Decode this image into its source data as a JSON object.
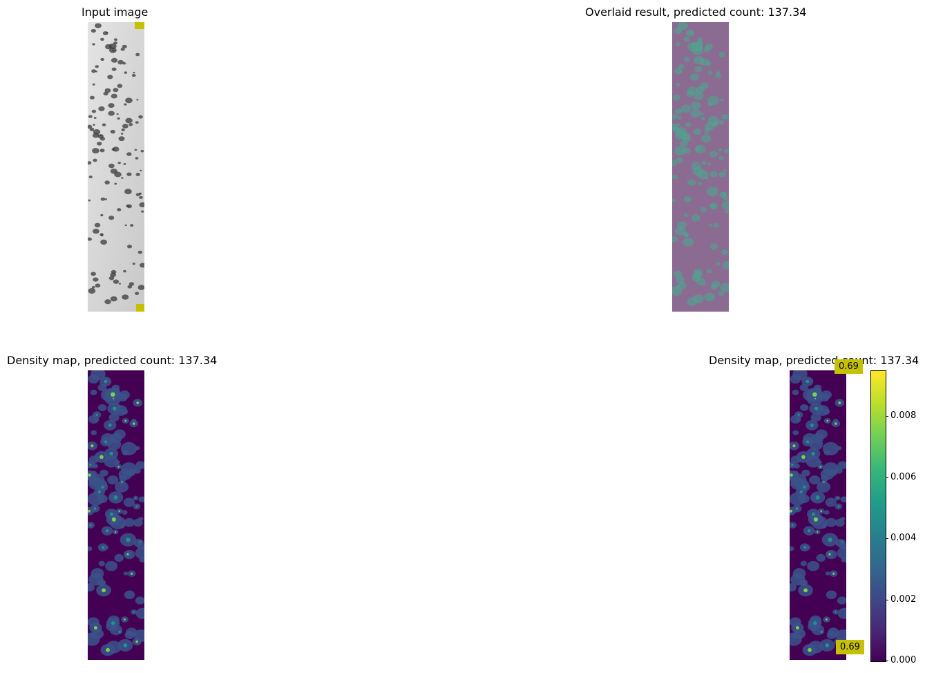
{
  "panels": {
    "input": {
      "title": "Input image"
    },
    "overlay": {
      "title": "Overlaid result, predicted count: 137.34"
    },
    "density": {
      "title": "Density map, predicted count: 137.34"
    },
    "density_cbar": {
      "title": "Density map, predicted count: 137.34"
    }
  },
  "annotations": {
    "top": "0.69",
    "bottom": "0.69"
  },
  "colors": {
    "viridis_dark": "#440154",
    "viridis_mid": "#21918c",
    "viridis_light": "#fde725",
    "overlay_purple": "#8b6b91",
    "box_yellow": "#c5c100"
  },
  "chart_data": {
    "type": "heatmap",
    "predicted_count": 137.34,
    "colorbar": {
      "ticks": [
        "0.000",
        "0.002",
        "0.004",
        "0.006",
        "0.008"
      ],
      "tick_values": [
        0,
        0.002,
        0.004,
        0.006,
        0.008
      ],
      "range": [
        0,
        0.0095
      ],
      "colormap": "viridis"
    },
    "exemplar_scores": [
      0.69,
      0.69
    ]
  }
}
